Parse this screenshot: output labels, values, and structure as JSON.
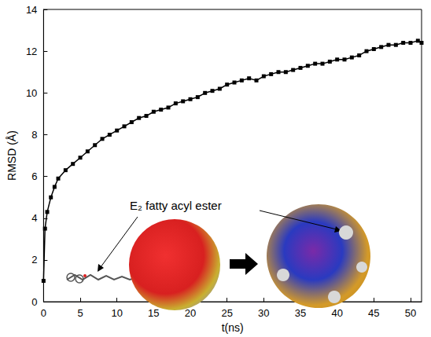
{
  "chart_data": {
    "type": "line",
    "x_label": "t(ns)",
    "y_label": "RMSD (Å)",
    "xlim": [
      0,
      51.5
    ],
    "xticks": [
      0,
      5,
      10,
      15,
      20,
      25,
      30,
      35,
      40,
      45,
      50
    ],
    "ylim": [
      0,
      14
    ],
    "yticks": [
      0,
      2,
      4,
      6,
      8,
      10,
      12,
      14
    ],
    "grid": false,
    "annotations": [
      {
        "text": "E₂ fatty acyl ester"
      }
    ],
    "series": [
      {
        "name": "RMSD",
        "color": "#000000",
        "marker": "square",
        "line_style": "solid",
        "x": [
          0,
          0.2,
          0.5,
          1,
          1.5,
          2,
          3,
          4,
          5,
          6,
          7,
          8,
          9,
          10,
          11,
          12,
          13,
          14,
          15,
          16,
          17,
          18,
          19,
          20,
          21,
          22,
          23,
          24,
          25,
          26,
          27,
          28,
          29,
          30,
          31,
          32,
          33,
          34,
          35,
          36,
          37,
          38,
          39,
          40,
          41,
          42,
          43,
          44,
          45,
          46,
          47,
          48,
          49,
          50,
          51,
          51.5
        ],
        "values": [
          1.0,
          3.5,
          4.3,
          5.0,
          5.5,
          5.9,
          6.3,
          6.6,
          6.9,
          7.2,
          7.5,
          7.8,
          8.0,
          8.2,
          8.4,
          8.6,
          8.8,
          8.9,
          9.1,
          9.2,
          9.3,
          9.5,
          9.6,
          9.7,
          9.8,
          10.0,
          10.1,
          10.2,
          10.4,
          10.5,
          10.6,
          10.7,
          10.6,
          10.8,
          10.9,
          11.0,
          11.0,
          11.1,
          11.2,
          11.3,
          11.4,
          11.4,
          11.5,
          11.6,
          11.6,
          11.7,
          11.8,
          12.0,
          12.1,
          12.2,
          12.3,
          12.3,
          12.4,
          12.4,
          12.5,
          12.4
        ]
      }
    ]
  }
}
